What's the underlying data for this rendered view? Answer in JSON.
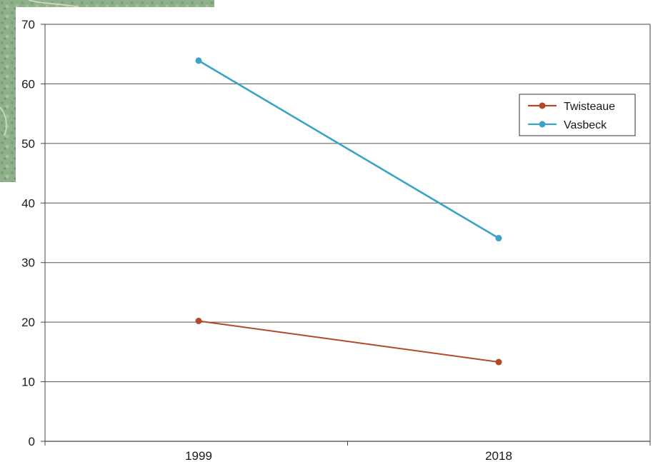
{
  "colors": {
    "twisteaue": "#b24a2a",
    "vasbeck": "#3aa3c7",
    "grid": "#555555",
    "frame": "#444444"
  },
  "chart_data": {
    "type": "line",
    "title": "",
    "xlabel": "",
    "ylabel": "",
    "categories": [
      "1999",
      "2018"
    ],
    "ylim": [
      0,
      70
    ],
    "yticks": [
      0,
      10,
      20,
      30,
      40,
      50,
      60,
      70
    ],
    "grid": true,
    "legend_position": "top-right",
    "series": [
      {
        "name": "Twisteaue",
        "values": [
          20.2,
          13.3
        ],
        "color": "#b24a2a"
      },
      {
        "name": "Vasbeck",
        "values": [
          63.9,
          34.1
        ],
        "color": "#3aa3c7"
      }
    ]
  }
}
